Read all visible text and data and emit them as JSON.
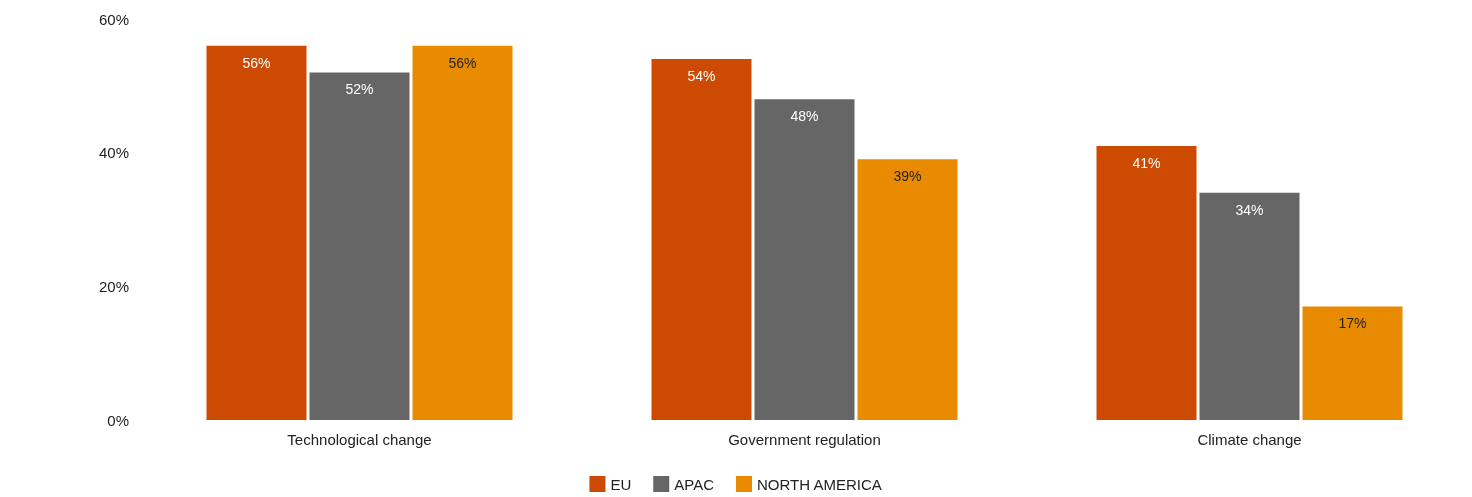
{
  "chart_data": {
    "type": "bar",
    "categories": [
      "Technological change",
      "Government regulation",
      "Climate change"
    ],
    "series": [
      {
        "name": "EU",
        "color": "#cc4a02",
        "values": [
          56,
          54,
          41
        ],
        "value_labels": [
          "56%",
          "54%",
          "41%"
        ]
      },
      {
        "name": "APAC",
        "color": "#666666",
        "values": [
          52,
          48,
          34
        ],
        "value_labels": [
          "52%",
          "48%",
          "34%"
        ]
      },
      {
        "name": "NORTH AMERICA",
        "color": "#e98b00",
        "values": [
          56,
          39,
          17
        ],
        "value_labels": [
          "56%",
          "39%",
          "17%"
        ]
      }
    ],
    "ylim": [
      0,
      60
    ],
    "yticks": [
      {
        "value": 0,
        "label": "0%"
      },
      {
        "value": 20,
        "label": "20%"
      },
      {
        "value": 40,
        "label": "40%"
      },
      {
        "value": 60,
        "label": "60%"
      }
    ],
    "grid": false,
    "legend": "bottom"
  }
}
